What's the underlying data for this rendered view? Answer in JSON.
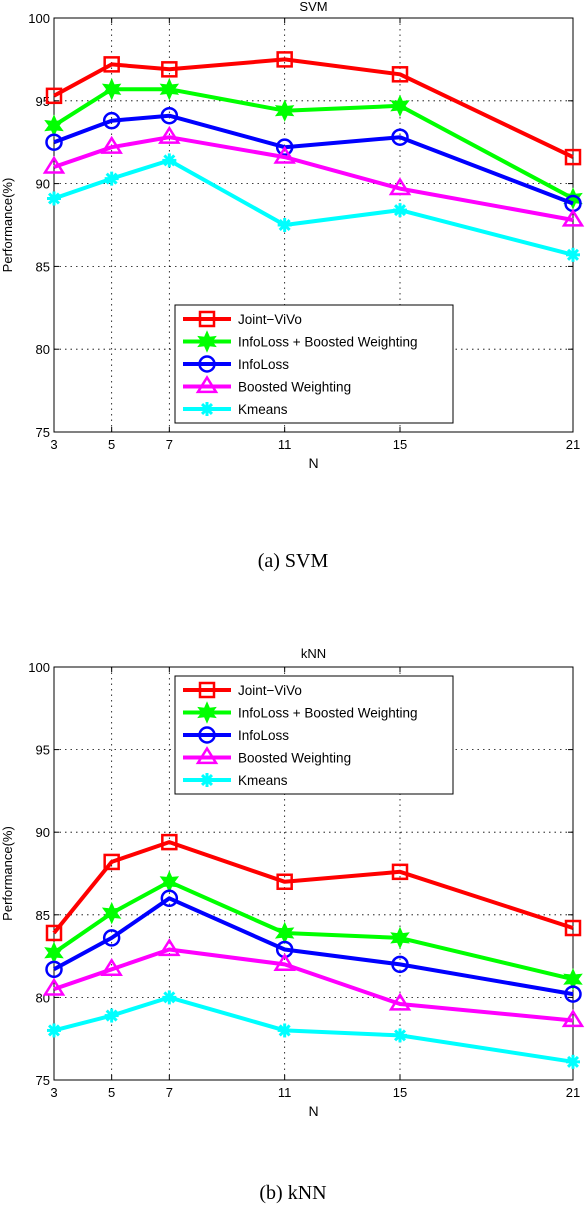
{
  "chart_data": [
    {
      "type": "line",
      "title": "SVM",
      "caption": "(a) SVM",
      "xlabel": "N",
      "ylabel": "Performance(%)",
      "x": [
        3,
        5,
        7,
        11,
        15,
        21
      ],
      "xticks": [
        "3",
        "5",
        "7",
        "11",
        "15",
        "21"
      ],
      "ylim": [
        75,
        100
      ],
      "yticks": [
        "75",
        "80",
        "85",
        "90",
        "95",
        "100"
      ],
      "grid": true,
      "legend_position": "bottom-center",
      "series": [
        {
          "name": "Joint−ViVo",
          "color": "#ff0000",
          "marker": "square",
          "values": [
            95.3,
            97.2,
            96.9,
            97.5,
            96.6,
            91.6
          ]
        },
        {
          "name": "InfoLoss + Boosted Weighting",
          "color": "#00ff00",
          "marker": "star",
          "values": [
            93.5,
            95.7,
            95.7,
            94.4,
            94.7,
            89.1
          ]
        },
        {
          "name": "InfoLoss",
          "color": "#0000ff",
          "marker": "circle",
          "values": [
            92.5,
            93.8,
            94.1,
            92.2,
            92.8,
            88.8
          ]
        },
        {
          "name": "Boosted Weighting",
          "color": "#ff00ff",
          "marker": "triangle",
          "values": [
            91.0,
            92.2,
            92.8,
            91.6,
            89.7,
            87.8
          ]
        },
        {
          "name": "Kmeans",
          "color": "#00ffff",
          "marker": "asterisk",
          "values": [
            89.1,
            90.3,
            91.4,
            87.5,
            88.4,
            85.7
          ]
        }
      ]
    },
    {
      "type": "line",
      "title": "kNN",
      "caption": "(b) kNN",
      "xlabel": "N",
      "ylabel": "Performance(%)",
      "x": [
        3,
        5,
        7,
        11,
        15,
        21
      ],
      "xticks": [
        "3",
        "5",
        "7",
        "11",
        "15",
        "21"
      ],
      "ylim": [
        75,
        100
      ],
      "yticks": [
        "75",
        "80",
        "85",
        "90",
        "95",
        "100"
      ],
      "grid": true,
      "legend_position": "top-center",
      "series": [
        {
          "name": "Joint−ViVo",
          "color": "#ff0000",
          "marker": "square",
          "values": [
            83.9,
            88.2,
            89.4,
            87.0,
            87.6,
            84.2
          ]
        },
        {
          "name": "InfoLoss + Boosted Weighting",
          "color": "#00ff00",
          "marker": "star",
          "values": [
            82.7,
            85.1,
            87.0,
            83.9,
            83.6,
            81.1
          ]
        },
        {
          "name": "InfoLoss",
          "color": "#0000ff",
          "marker": "circle",
          "values": [
            81.7,
            83.6,
            86.0,
            82.9,
            82.0,
            80.2
          ]
        },
        {
          "name": "Boosted Weighting",
          "color": "#ff00ff",
          "marker": "triangle",
          "values": [
            80.5,
            81.7,
            82.9,
            82.0,
            79.6,
            78.6
          ]
        },
        {
          "name": "Kmeans",
          "color": "#00ffff",
          "marker": "asterisk",
          "values": [
            78.0,
            78.9,
            80.0,
            78.0,
            77.7,
            76.1
          ]
        }
      ]
    }
  ]
}
